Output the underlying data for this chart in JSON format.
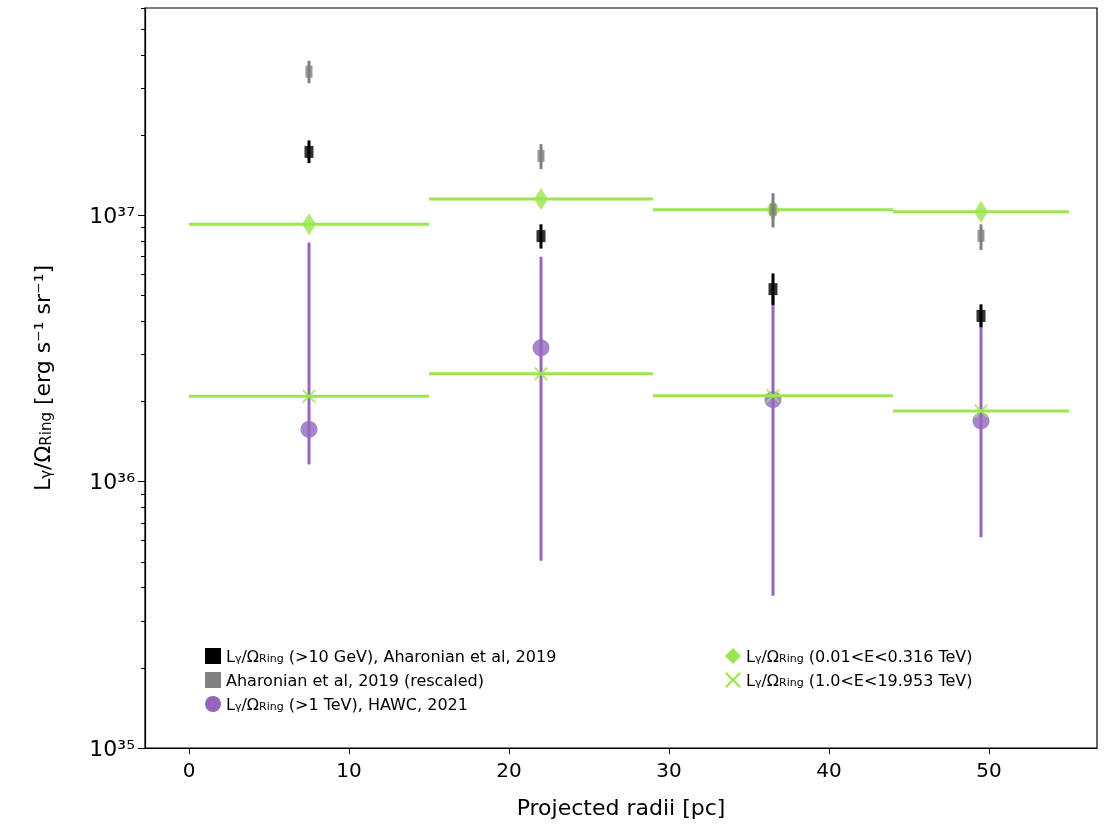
{
  "chart_data": {
    "type": "scatter",
    "xlabel": "Projected radii [pc]",
    "ylabel": "L$_{γ}$/Ω$_{Ring}$ [erg s⁻¹ sr⁻¹]",
    "xlim": [
      -2.75,
      56.75
    ],
    "xticks": [
      0,
      10,
      20,
      30,
      40,
      50
    ],
    "ylim": [
      1e+35,
      6e+37
    ],
    "yticks": [
      {
        "value": 1e+35,
        "label": "10³⁵"
      },
      {
        "value": 1e+36,
        "label": "10³⁶"
      },
      {
        "value": 1e+37,
        "label": "10³⁷"
      }
    ],
    "log": "y",
    "grid": false,
    "legend": "bottom",
    "series": [
      {
        "name": "L$_{γ}$/Ω$_{Ring}$ (>10 GeV), Aharonian et al, 2019",
        "color": "#000000",
        "marker": "square",
        "x": [
          7.5,
          22,
          36.5,
          49.5
        ],
        "values": [
          1.73e+37,
          8.35e+36,
          5.28e+36,
          4.19e+36
        ],
        "errors": [
          [
            1.57e+37,
            1.91e+37
          ],
          [
            7.5e+36,
            9.25e+36
          ],
          [
            4.6e+36,
            6.05e+36
          ],
          [
            3.8e+36,
            4.63e+36
          ]
        ]
      },
      {
        "name": "Aharonian et al, 2019 (rescaled)",
        "color": "#808080",
        "marker": "square",
        "x": [
          7.5,
          22,
          36.5,
          49.5
        ],
        "values": [
          3.46e+37,
          1.67e+37,
          1.05e+37,
          8.37e+36
        ],
        "errors": [
          [
            3.13e+37,
            3.8e+37
          ],
          [
            1.49e+37,
            1.85e+37
          ],
          [
            9e+36,
            1.21e+37
          ],
          [
            7.4e+36,
            9.25e+36
          ]
        ]
      },
      {
        "name": "L$_{γ}$/Ω$_{Ring}$ (>1 TeV), HAWC, 2021",
        "color": "#9467bd",
        "marker": "circle",
        "x": [
          7.5,
          22,
          36.5,
          49.5
        ],
        "values": [
          1.57e+36,
          3.18e+36,
          2.03e+36,
          1.69e+36
        ],
        "errors": [
          [
            1.16e+36,
            7.9e+36
          ],
          [
            5.05e+35,
            6.99e+36
          ],
          [
            3.73e+35,
            5e+36
          ],
          [
            6.18e+35,
            4.2e+36
          ]
        ]
      },
      {
        "name": "L$_{γ}$/Ω$_{Ring}$ (0.01<E<0.316 TeV)",
        "color": "#9be64f",
        "marker": "diamond",
        "x": [
          7.5,
          22,
          36.5,
          49.5
        ],
        "values": [
          9.25e+36,
          1.15e+37,
          1.05e+37,
          1.03e+37
        ],
        "xerrors": [
          [
            0,
            15
          ],
          [
            15,
            29
          ],
          [
            29,
            44
          ],
          [
            44,
            55
          ]
        ]
      },
      {
        "name": "L$_{γ}$/Ω$_{Ring}$ (1.0<E<19.953 TeV)",
        "color": "#9be64f",
        "marker": "cross",
        "x": [
          7.5,
          22,
          36.5,
          49.5
        ],
        "values": [
          2.09e+36,
          2.54e+36,
          2.1e+36,
          1.84e+36
        ],
        "xerrors": [
          [
            0,
            15
          ],
          [
            15,
            29
          ],
          [
            29,
            44
          ],
          [
            44,
            55
          ]
        ]
      }
    ]
  }
}
